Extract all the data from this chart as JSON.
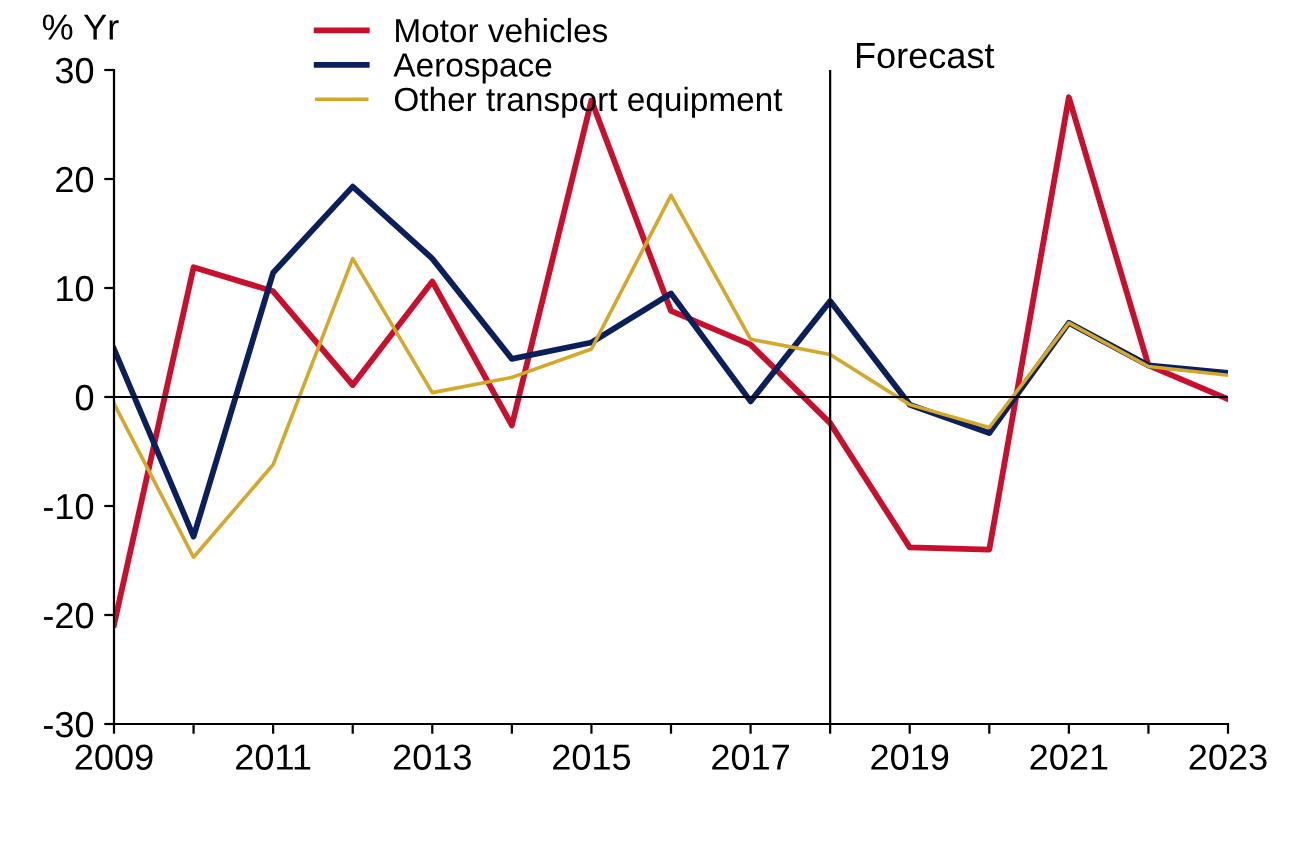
{
  "chart_data": {
    "type": "line",
    "ylabel": "% Yr",
    "x": [
      2009,
      2010,
      2011,
      2012,
      2013,
      2014,
      2015,
      2016,
      2017,
      2018,
      2019,
      2020,
      2021,
      2022,
      2023
    ],
    "series": [
      {
        "name": "Motor vehicles",
        "color": "#c8102e",
        "values": [
          -20.9,
          11.9,
          9.7,
          1.1,
          10.6,
          -2.6,
          27.2,
          7.9,
          4.8,
          -2.4,
          -13.8,
          -14.0,
          27.5,
          2.9,
          -0.2
        ]
      },
      {
        "name": "Aerospace",
        "color": "#0b1f5c",
        "values": [
          4.4,
          -12.8,
          11.4,
          19.3,
          12.7,
          3.5,
          5.0,
          9.5,
          -0.4,
          8.8,
          -0.7,
          -3.3,
          6.8,
          2.9,
          2.2
        ]
      },
      {
        "name": "Other transport equipment",
        "color": "#d4a82a",
        "values": [
          -0.6,
          -14.7,
          -6.2,
          12.7,
          0.4,
          1.8,
          4.4,
          18.5,
          5.3,
          3.9,
          -0.7,
          -2.8,
          6.8,
          2.8,
          2.0
        ]
      }
    ],
    "xlim": [
      2009,
      2023
    ],
    "ylim": [
      -30,
      30
    ],
    "xticks": [
      2009,
      {
        "value": 2010,
        "label": null
      },
      2011,
      {
        "value": 2012,
        "label": null
      },
      2013,
      {
        "value": 2014,
        "label": null
      },
      2015,
      {
        "value": 2016,
        "label": null
      },
      2017,
      {
        "value": 2018,
        "label": null
      },
      2019,
      {
        "value": 2020,
        "label": null
      },
      2021,
      {
        "value": 2022,
        "label": null
      },
      2023
    ],
    "yticks": [
      -30,
      -20,
      -10,
      0,
      10,
      20,
      30
    ],
    "ref_lines": [
      {
        "axis": "x",
        "value": 2018,
        "label": "Forecast",
        "color": "#000000"
      },
      {
        "axis": "y",
        "value": 0,
        "color": "#000000"
      }
    ],
    "grid": false,
    "legend": "top left",
    "marker": "none",
    "line_style": "solid"
  }
}
